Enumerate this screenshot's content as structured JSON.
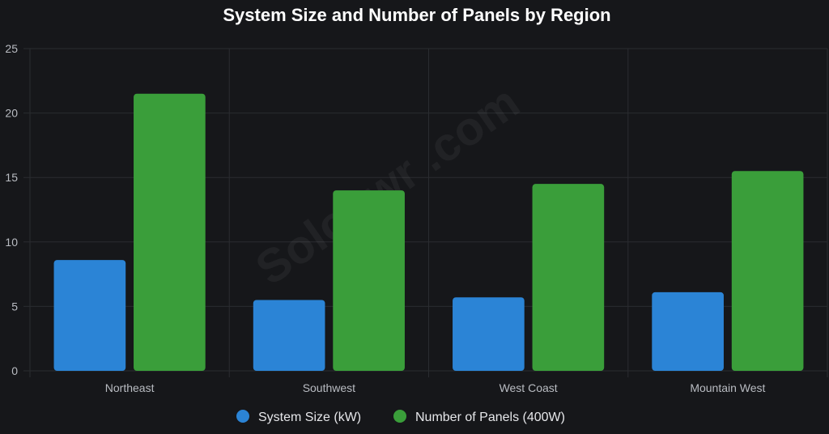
{
  "chart_data": {
    "type": "bar",
    "title": "System Size and Number of Panels by Region",
    "categories": [
      "Northeast",
      "Southwest",
      "West Coast",
      "Mountain West"
    ],
    "series": [
      {
        "name": "System Size (kW)",
        "values": [
          8.6,
          5.5,
          5.7,
          6.1
        ]
      },
      {
        "name": "Number of Panels (400W)",
        "values": [
          21.5,
          14,
          14.5,
          15.5
        ]
      }
    ],
    "ylim": [
      0,
      25
    ],
    "yticks": [
      0,
      5,
      10,
      15,
      20,
      25
    ],
    "grid": true,
    "legend_position": "bottom",
    "xlabel": "",
    "ylabel": ""
  },
  "watermark": "Solopwr .com",
  "colors": {
    "background": "#16171a",
    "grid": "#2a2c30",
    "series": [
      "#2b84d6",
      "#3a9e3a"
    ]
  }
}
